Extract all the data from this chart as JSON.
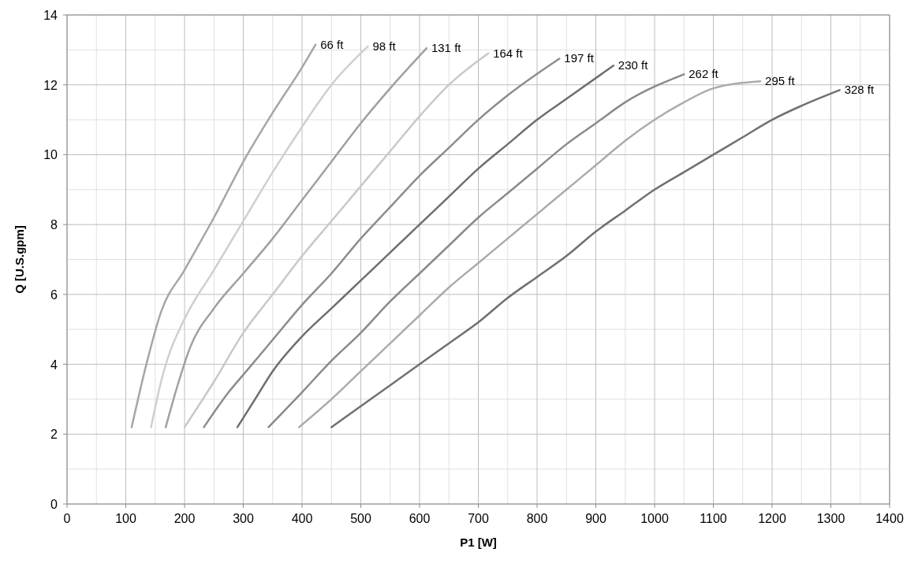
{
  "chart_data": {
    "type": "line",
    "xlabel": "P1 [W]",
    "ylabel": "Q [U.S.gpm]",
    "xlim": [
      0,
      1400
    ],
    "ylim": [
      0,
      14
    ],
    "xticks": [
      0,
      100,
      200,
      300,
      400,
      500,
      600,
      700,
      800,
      900,
      1000,
      1100,
      1200,
      1300,
      1400
    ],
    "yticks": [
      0,
      2,
      4,
      6,
      8,
      10,
      12,
      14
    ],
    "grid": true,
    "marker": "none",
    "line_style": "solid",
    "series": [
      {
        "name": "66 ft",
        "color": "#a6a6a6",
        "x": [
          110,
          135,
          160,
          200,
          250,
          300,
          350,
          400,
          423
        ],
        "values": [
          2.2,
          4,
          5.5,
          6.7,
          8.2,
          9.8,
          11.2,
          12.5,
          13.15
        ]
      },
      {
        "name": "98 ft",
        "color": "#cfcfcf",
        "x": [
          143,
          160,
          172,
          200,
          250,
          300,
          350,
          400,
          450,
          512
        ],
        "values": [
          2.2,
          3.5,
          4.2,
          5.3,
          6.7,
          8.1,
          9.5,
          10.8,
          12,
          13.1
        ]
      },
      {
        "name": "131 ft",
        "color": "#a0a0a0",
        "x": [
          168,
          190,
          210,
          250,
          300,
          350,
          400,
          450,
          500,
          550,
          612
        ],
        "values": [
          2.2,
          3.5,
          4.5,
          5.6,
          6.6,
          7.6,
          8.7,
          9.8,
          10.9,
          11.9,
          13.05
        ]
      },
      {
        "name": "164 ft",
        "color": "#c8c8c8",
        "x": [
          200,
          250,
          300,
          350,
          400,
          450,
          500,
          550,
          600,
          650,
          717
        ],
        "values": [
          2.2,
          3.5,
          4.9,
          6.0,
          7.1,
          8.1,
          9.1,
          10.1,
          11.1,
          12.0,
          12.9
        ]
      },
      {
        "name": "197 ft",
        "color": "#8c8c8c",
        "x": [
          233,
          275,
          300,
          350,
          400,
          450,
          500,
          550,
          600,
          650,
          700,
          750,
          838
        ],
        "values": [
          2.2,
          3.2,
          3.7,
          4.7,
          5.7,
          6.6,
          7.6,
          8.5,
          9.4,
          10.2,
          11.0,
          11.7,
          12.75
        ]
      },
      {
        "name": "230 ft",
        "color": "#6e6e6e",
        "x": [
          290,
          320,
          350,
          400,
          450,
          500,
          550,
          600,
          650,
          700,
          750,
          800,
          850,
          930
        ],
        "values": [
          2.2,
          3.0,
          3.8,
          4.8,
          5.6,
          6.4,
          7.2,
          8.0,
          8.8,
          9.6,
          10.3,
          11.0,
          11.6,
          12.55
        ]
      },
      {
        "name": "262 ft",
        "color": "#8a8a8a",
        "x": [
          343,
          400,
          450,
          500,
          550,
          600,
          650,
          700,
          750,
          800,
          850,
          900,
          950,
          1050
        ],
        "values": [
          2.2,
          3.2,
          4.1,
          4.9,
          5.8,
          6.6,
          7.4,
          8.2,
          8.9,
          9.6,
          10.3,
          10.9,
          11.5,
          12.3
        ]
      },
      {
        "name": "295 ft",
        "color": "#ababab",
        "x": [
          395,
          450,
          500,
          550,
          600,
          650,
          700,
          750,
          800,
          850,
          900,
          950,
          1000,
          1050,
          1100,
          1180
        ],
        "values": [
          2.2,
          3.0,
          3.8,
          4.6,
          5.4,
          6.2,
          6.9,
          7.6,
          8.3,
          9.0,
          9.7,
          10.4,
          11.0,
          11.5,
          11.9,
          12.1
        ]
      },
      {
        "name": "328 ft",
        "color": "#707070",
        "x": [
          450,
          500,
          550,
          600,
          650,
          700,
          750,
          800,
          850,
          900,
          950,
          1000,
          1050,
          1100,
          1150,
          1200,
          1250,
          1315
        ],
        "values": [
          2.2,
          2.8,
          3.4,
          4.0,
          4.6,
          5.2,
          5.9,
          6.5,
          7.1,
          7.8,
          8.4,
          9.0,
          9.5,
          10.0,
          10.5,
          11.0,
          11.4,
          11.85
        ]
      }
    ]
  }
}
